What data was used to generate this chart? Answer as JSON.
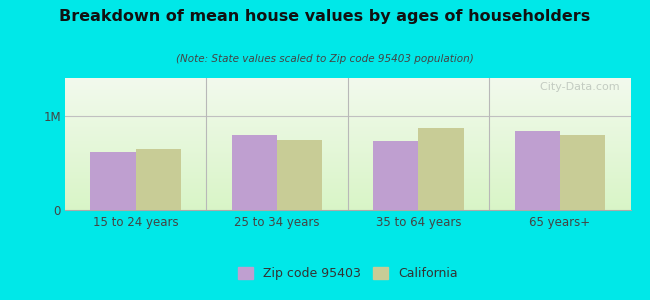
{
  "title": "Breakdown of mean house values by ages of householders",
  "subtitle": "(Note: State values scaled to Zip code 95403 population)",
  "categories": [
    "15 to 24 years",
    "25 to 34 years",
    "35 to 64 years",
    "65 years+"
  ],
  "zip_values": [
    620000,
    800000,
    730000,
    840000
  ],
  "ca_values": [
    650000,
    740000,
    870000,
    800000
  ],
  "ylim": [
    0,
    1400000
  ],
  "yticks": [
    0,
    1000000
  ],
  "ytick_labels": [
    "0",
    "1M"
  ],
  "zip_color": "#bf9fd0",
  "ca_color": "#c8cc96",
  "outer_bg": "#00e8e8",
  "legend_zip_label": "Zip code 95403",
  "legend_ca_label": "California",
  "bar_width": 0.32,
  "watermark": "  City-Data.com"
}
